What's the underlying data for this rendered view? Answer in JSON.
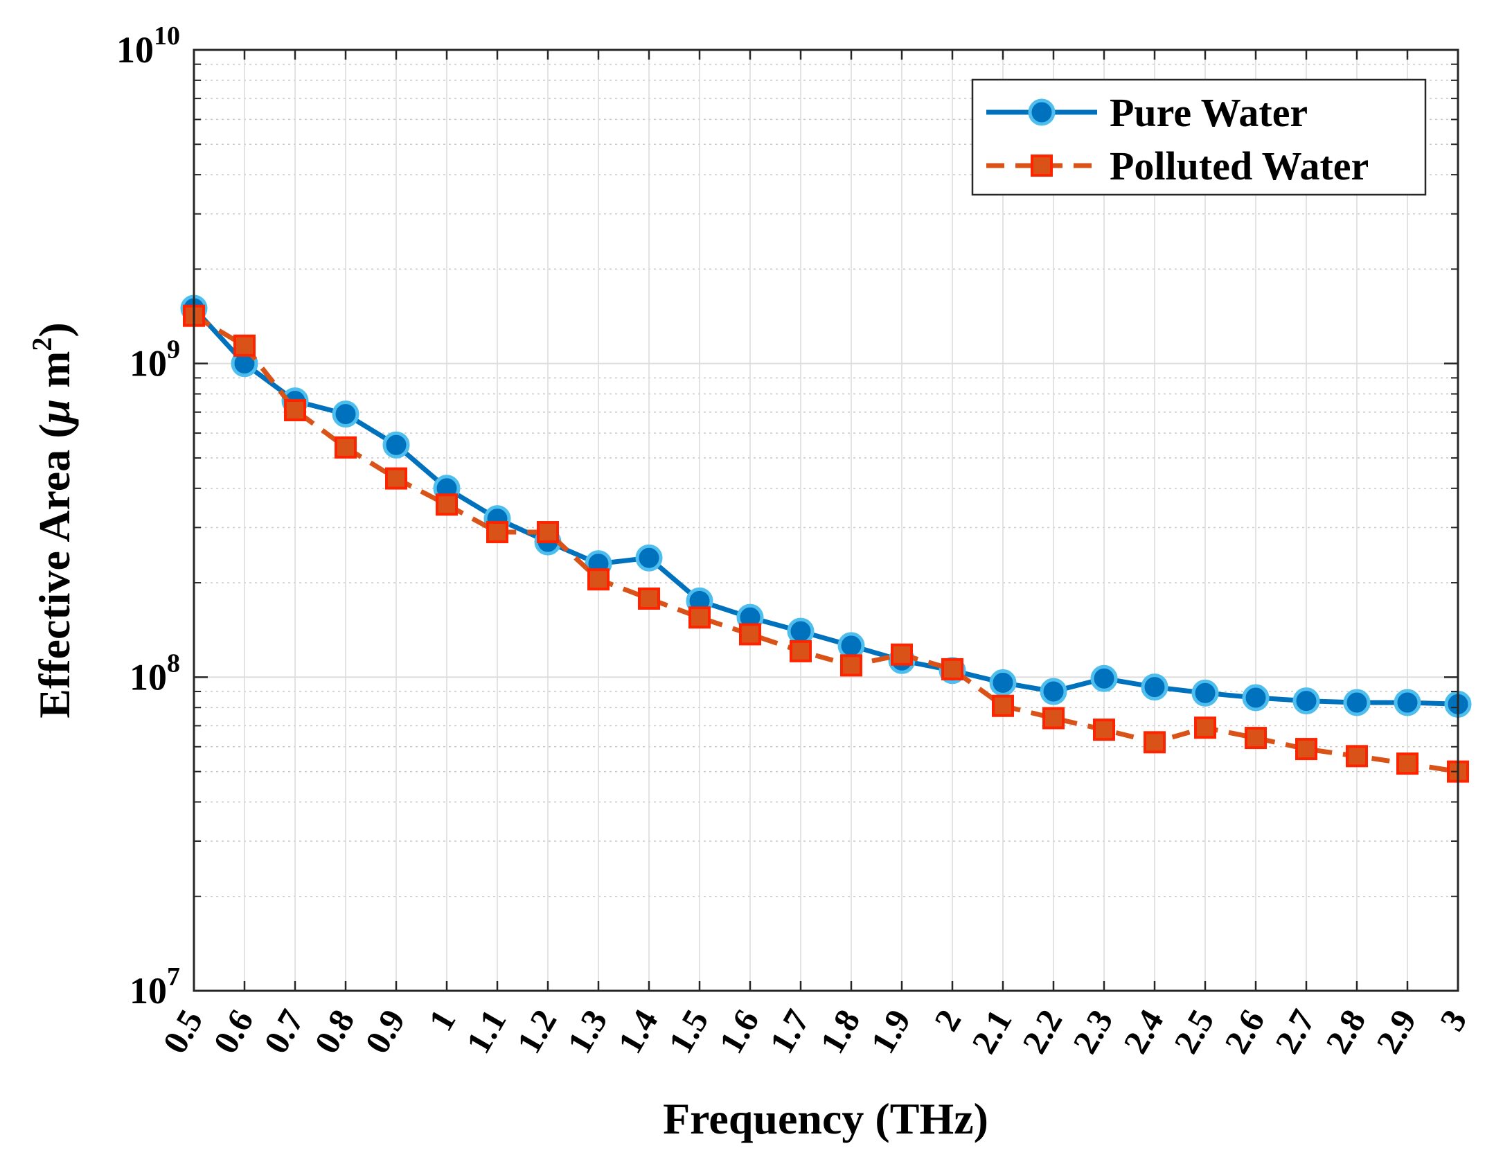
{
  "chart_data": {
    "type": "line",
    "title": "",
    "xlabel": "Frequency (THz)",
    "ylabel_text": "Effective Area (",
    "ylabel_mu": "μ",
    "ylabel_unit": " m",
    "ylabel_exp": "2",
    "ylabel_close": ")",
    "yscale": "log",
    "xlim": [
      0.5,
      3.0
    ],
    "ylim": [
      10000000,
      10000000000
    ],
    "grid": true,
    "legend_position": "top-right",
    "x_tick_labels": [
      "0.5",
      "0.6",
      "0.7",
      "0.8",
      "0.9",
      "1",
      "1.1",
      "1.2",
      "1.3",
      "1.4",
      "1.5",
      "1.6",
      "1.7",
      "1.8",
      "1.9",
      "2",
      "2.1",
      "2.2",
      "2.3",
      "2.4",
      "2.5",
      "2.6",
      "2.7",
      "2.8",
      "2.9",
      "3"
    ],
    "y_ticks": [
      {
        "value": 10000000,
        "base": "10",
        "exp": "7"
      },
      {
        "value": 100000000,
        "base": "10",
        "exp": "8"
      },
      {
        "value": 1000000000,
        "base": "10",
        "exp": "9"
      },
      {
        "value": 10000000000,
        "base": "10",
        "exp": "10"
      }
    ],
    "x": [
      0.5,
      0.6,
      0.7,
      0.8,
      0.9,
      1.0,
      1.1,
      1.2,
      1.3,
      1.4,
      1.5,
      1.6,
      1.7,
      1.8,
      1.9,
      2.0,
      2.1,
      2.2,
      2.3,
      2.4,
      2.5,
      2.6,
      2.7,
      2.8,
      2.9,
      3.0
    ],
    "series": [
      {
        "name": "Pure Water",
        "color": "#0072BD",
        "line_style": "solid",
        "marker": "circle",
        "values": [
          1500000000,
          1000000000,
          760000000,
          690000000,
          550000000,
          400000000,
          320000000,
          270000000,
          230000000,
          240000000,
          175000000,
          155000000,
          140000000,
          126000000,
          113000000,
          105000000,
          96000000,
          90000000,
          99000000,
          93000000,
          89000000,
          86000000,
          84000000,
          83000000,
          83000000,
          82000000
        ]
      },
      {
        "name": "Polluted Water",
        "color": "#D95319",
        "line_style": "dashed",
        "marker": "square",
        "values": [
          1420000000,
          1140000000,
          710000000,
          540000000,
          430000000,
          355000000,
          290000000,
          290000000,
          205000000,
          178000000,
          155000000,
          137000000,
          121000000,
          109000000,
          118000000,
          106000000,
          81000000,
          74000000,
          68000000,
          62000000,
          69000000,
          64000000,
          59000000,
          56000000,
          53000000,
          50000000
        ]
      }
    ]
  }
}
